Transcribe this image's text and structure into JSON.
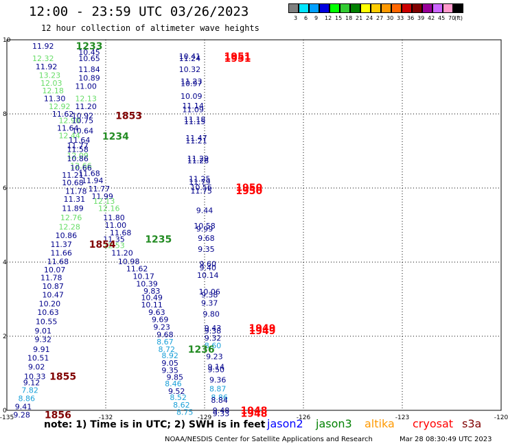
{
  "title": "12:00 - 23:59 UTC 03/26/2023",
  "subtitle": "12 hour collection of altimeter wave heights",
  "color_scale": {
    "labels": [
      "3",
      "6",
      "9",
      "12",
      "15",
      "18",
      "21",
      "24",
      "27",
      "30",
      "33",
      "36",
      "39",
      "42",
      "45",
      "70",
      "(ft)"
    ],
    "colors": [
      "#7f7f7f",
      "#00e5ff",
      "#00a0ff",
      "#0000e0",
      "#00ff00",
      "#33cc33",
      "#008000",
      "#ffff00",
      "#ffcc00",
      "#ff9900",
      "#ff6600",
      "#cc0000",
      "#800000",
      "#990099",
      "#cc66ff",
      "#ff99cc",
      "#000000"
    ]
  },
  "chart_data": {
    "type": "scatter",
    "title": "12:00 - 23:59 UTC 03/26/2023",
    "subtitle": "12 hour collection of altimeter wave heights",
    "xlim": [
      -135,
      -120
    ],
    "ylim": [
      0,
      10
    ],
    "x_ticks": [
      -135,
      -132,
      -129,
      -126,
      -123,
      -120
    ],
    "y_ticks": [
      0,
      2,
      4,
      6,
      8,
      10
    ],
    "x_tick_labels": [
      "-135",
      "-132",
      "-129",
      "-126",
      "-123",
      "-120"
    ],
    "y_tick_labels": [
      "0",
      "2",
      "4",
      "6",
      "8",
      "10"
    ],
    "grid": true,
    "units": "ft",
    "value_colors": {
      "dark_blue": "#00008b",
      "light_green": "#66dd66",
      "cyan": "#1aa0d8"
    },
    "time_colors": {
      "green": "#228b22",
      "dark_red": "#800000",
      "red": "#ff0000"
    },
    "points": [
      {
        "lon": -133.9,
        "lat": 9.83,
        "v": "11.92",
        "c": "dark_blue"
      },
      {
        "lon": -132.5,
        "lat": 9.67,
        "v": "10.45",
        "c": "dark_blue"
      },
      {
        "lon": -133.9,
        "lat": 9.5,
        "v": "12.32",
        "c": "light_green"
      },
      {
        "lon": -132.5,
        "lat": 9.5,
        "v": "10.65",
        "c": "dark_blue"
      },
      {
        "lon": -133.8,
        "lat": 9.28,
        "v": "11.92",
        "c": "dark_blue"
      },
      {
        "lon": -132.5,
        "lat": 9.2,
        "v": "11.84",
        "c": "dark_blue"
      },
      {
        "lon": -133.7,
        "lat": 9.05,
        "v": "13.23",
        "c": "light_green"
      },
      {
        "lon": -132.5,
        "lat": 8.97,
        "v": "10.89",
        "c": "dark_blue"
      },
      {
        "lon": -133.65,
        "lat": 8.83,
        "v": "12.03",
        "c": "light_green"
      },
      {
        "lon": -132.6,
        "lat": 8.75,
        "v": "11.00",
        "c": "dark_blue"
      },
      {
        "lon": -133.6,
        "lat": 8.63,
        "v": "12.18",
        "c": "light_green"
      },
      {
        "lon": -133.55,
        "lat": 8.42,
        "v": "11.30",
        "c": "dark_blue"
      },
      {
        "lon": -132.6,
        "lat": 8.42,
        "v": "12.13",
        "c": "light_green"
      },
      {
        "lon": -133.4,
        "lat": 8.2,
        "v": "12.92",
        "c": "light_green"
      },
      {
        "lon": -132.6,
        "lat": 8.2,
        "v": "11.20",
        "c": "dark_blue"
      },
      {
        "lon": -133.3,
        "lat": 8.0,
        "v": "11.62",
        "c": "dark_blue"
      },
      {
        "lon": -132.7,
        "lat": 7.95,
        "v": "10.92",
        "c": "dark_blue"
      },
      {
        "lon": -133.1,
        "lat": 7.82,
        "v": "12.90",
        "c": "light_green"
      },
      {
        "lon": -132.7,
        "lat": 7.82,
        "v": "10.75",
        "c": "dark_blue"
      },
      {
        "lon": -133.15,
        "lat": 7.62,
        "v": "11.64",
        "c": "dark_blue"
      },
      {
        "lon": -132.7,
        "lat": 7.55,
        "v": "10.64",
        "c": "dark_blue"
      },
      {
        "lon": -133.1,
        "lat": 7.42,
        "v": "12.44",
        "c": "light_green"
      },
      {
        "lon": -132.8,
        "lat": 7.3,
        "v": "11.64",
        "c": "dark_blue"
      },
      {
        "lon": -132.85,
        "lat": 7.15,
        "v": "11.77",
        "c": "dark_blue"
      },
      {
        "lon": -132.85,
        "lat": 7.05,
        "v": "11.58",
        "c": "dark_blue"
      },
      {
        "lon": -132.85,
        "lat": 6.88,
        "v": "12.09",
        "c": "light_green"
      },
      {
        "lon": -132.85,
        "lat": 6.8,
        "v": "10.86",
        "c": "dark_blue"
      },
      {
        "lon": -132.75,
        "lat": 6.6,
        "v": "12.66",
        "c": "light_green"
      },
      {
        "lon": -132.75,
        "lat": 6.55,
        "v": "10.66",
        "c": "dark_blue"
      },
      {
        "lon": -132.5,
        "lat": 6.4,
        "v": "11.68",
        "c": "dark_blue"
      },
      {
        "lon": -133.0,
        "lat": 6.35,
        "v": "11.21",
        "c": "dark_blue"
      },
      {
        "lon": -132.4,
        "lat": 6.2,
        "v": "11.94",
        "c": "dark_blue"
      },
      {
        "lon": -133.0,
        "lat": 6.15,
        "v": "10.68",
        "c": "dark_blue"
      },
      {
        "lon": -132.2,
        "lat": 5.98,
        "v": "11.77",
        "c": "dark_blue"
      },
      {
        "lon": -132.9,
        "lat": 5.92,
        "v": "11.78",
        "c": "dark_blue"
      },
      {
        "lon": -132.1,
        "lat": 5.78,
        "v": "11.99",
        "c": "dark_blue"
      },
      {
        "lon": -132.95,
        "lat": 5.7,
        "v": "11.31",
        "c": "dark_blue"
      },
      {
        "lon": -132.05,
        "lat": 5.65,
        "v": "12.13",
        "c": "light_green"
      },
      {
        "lon": -133.0,
        "lat": 5.45,
        "v": "11.89",
        "c": "dark_blue"
      },
      {
        "lon": -131.9,
        "lat": 5.45,
        "v": "12.16",
        "c": "light_green"
      },
      {
        "lon": -133.05,
        "lat": 5.2,
        "v": "12.76",
        "c": "light_green"
      },
      {
        "lon": -131.75,
        "lat": 5.2,
        "v": "11.80",
        "c": "dark_blue"
      },
      {
        "lon": -131.7,
        "lat": 5.0,
        "v": "11.00",
        "c": "dark_blue"
      },
      {
        "lon": -133.1,
        "lat": 4.95,
        "v": "12.28",
        "c": "light_green"
      },
      {
        "lon": -131.55,
        "lat": 4.8,
        "v": "11.68",
        "c": "dark_blue"
      },
      {
        "lon": -133.2,
        "lat": 4.72,
        "v": "10.86",
        "c": "dark_blue"
      },
      {
        "lon": -131.75,
        "lat": 4.62,
        "v": "11.35",
        "c": "dark_blue"
      },
      {
        "lon": -133.35,
        "lat": 4.48,
        "v": "11.37",
        "c": "dark_blue"
      },
      {
        "lon": -131.75,
        "lat": 4.45,
        "v": "12.53",
        "c": "light_green"
      },
      {
        "lon": -133.35,
        "lat": 4.25,
        "v": "11.66",
        "c": "dark_blue"
      },
      {
        "lon": -131.5,
        "lat": 4.25,
        "v": "11.20",
        "c": "dark_blue"
      },
      {
        "lon": -133.45,
        "lat": 4.02,
        "v": "11.68",
        "c": "dark_blue"
      },
      {
        "lon": -131.3,
        "lat": 4.02,
        "v": "10.98",
        "c": "dark_blue"
      },
      {
        "lon": -133.55,
        "lat": 3.8,
        "v": "10.07",
        "c": "dark_blue"
      },
      {
        "lon": -131.05,
        "lat": 3.82,
        "v": "11.62",
        "c": "dark_blue"
      },
      {
        "lon": -130.85,
        "lat": 3.62,
        "v": "10.17",
        "c": "dark_blue"
      },
      {
        "lon": -133.65,
        "lat": 3.58,
        "v": "11.78",
        "c": "dark_blue"
      },
      {
        "lon": -130.75,
        "lat": 3.42,
        "v": "10.39",
        "c": "dark_blue"
      },
      {
        "lon": -133.6,
        "lat": 3.35,
        "v": "10.87",
        "c": "dark_blue"
      },
      {
        "lon": -130.6,
        "lat": 3.22,
        "v": "9.83",
        "c": "dark_blue"
      },
      {
        "lon": -133.6,
        "lat": 3.12,
        "v": "10.47",
        "c": "dark_blue"
      },
      {
        "lon": -130.6,
        "lat": 3.05,
        "v": "10.49",
        "c": "dark_blue"
      },
      {
        "lon": -133.7,
        "lat": 2.88,
        "v": "10.20",
        "c": "dark_blue"
      },
      {
        "lon": -130.6,
        "lat": 2.85,
        "v": "10.11",
        "c": "dark_blue"
      },
      {
        "lon": -130.45,
        "lat": 2.65,
        "v": "9.63",
        "c": "dark_blue"
      },
      {
        "lon": -133.75,
        "lat": 2.65,
        "v": "10.63",
        "c": "dark_blue"
      },
      {
        "lon": -130.35,
        "lat": 2.45,
        "v": "9.69",
        "c": "dark_blue"
      },
      {
        "lon": -133.8,
        "lat": 2.4,
        "v": "10.55",
        "c": "dark_blue"
      },
      {
        "lon": -130.3,
        "lat": 2.25,
        "v": "9.23",
        "c": "dark_blue"
      },
      {
        "lon": -133.9,
        "lat": 2.15,
        "v": "9.01",
        "c": "dark_blue"
      },
      {
        "lon": -130.2,
        "lat": 2.05,
        "v": "9.68",
        "c": "dark_blue"
      },
      {
        "lon": -133.9,
        "lat": 1.92,
        "v": "9.32",
        "c": "dark_blue"
      },
      {
        "lon": -130.2,
        "lat": 1.85,
        "v": "8.67",
        "c": "cyan"
      },
      {
        "lon": -133.95,
        "lat": 1.65,
        "v": "9.91",
        "c": "dark_blue"
      },
      {
        "lon": -130.15,
        "lat": 1.65,
        "v": "8.72",
        "c": "cyan"
      },
      {
        "lon": -130.05,
        "lat": 1.48,
        "v": "8.92",
        "c": "cyan"
      },
      {
        "lon": -134.05,
        "lat": 1.42,
        "v": "10.51",
        "c": "dark_blue"
      },
      {
        "lon": -130.05,
        "lat": 1.28,
        "v": "9.05",
        "c": "dark_blue"
      },
      {
        "lon": -134.1,
        "lat": 1.18,
        "v": "9.02",
        "c": "dark_blue"
      },
      {
        "lon": -130.05,
        "lat": 1.08,
        "v": "9.35",
        "c": "dark_blue"
      },
      {
        "lon": -134.15,
        "lat": 0.92,
        "v": "10.33",
        "c": "dark_blue"
      },
      {
        "lon": -129.9,
        "lat": 0.9,
        "v": "9.85",
        "c": "dark_blue"
      },
      {
        "lon": -134.25,
        "lat": 0.75,
        "v": "9.12",
        "c": "dark_blue"
      },
      {
        "lon": -129.95,
        "lat": 0.72,
        "v": "8.46",
        "c": "cyan"
      },
      {
        "lon": -134.3,
        "lat": 0.55,
        "v": "7.82",
        "c": "cyan"
      },
      {
        "lon": -129.85,
        "lat": 0.52,
        "v": "9.52",
        "c": "dark_blue"
      },
      {
        "lon": -134.4,
        "lat": 0.32,
        "v": "8.86",
        "c": "cyan"
      },
      {
        "lon": -129.8,
        "lat": 0.35,
        "v": "8.52",
        "c": "cyan"
      },
      {
        "lon": -134.5,
        "lat": 0.1,
        "v": "9.41",
        "c": "dark_blue"
      },
      {
        "lon": -129.7,
        "lat": 0.15,
        "v": "8.62",
        "c": "cyan"
      },
      {
        "lon": -129.6,
        "lat": -0.05,
        "v": "8.75",
        "c": "cyan"
      },
      {
        "lon": -134.55,
        "lat": -0.12,
        "v": "9.28",
        "c": "dark_blue"
      },
      {
        "lon": -129.45,
        "lat": 9.56,
        "v": "10.41",
        "c": "dark_blue"
      },
      {
        "lon": -129.45,
        "lat": 9.5,
        "v": "11.24",
        "c": "dark_blue"
      },
      {
        "lon": -129.45,
        "lat": 9.2,
        "v": "10.32",
        "c": "dark_blue"
      },
      {
        "lon": -129.4,
        "lat": 8.88,
        "v": "11.23",
        "c": "dark_blue"
      },
      {
        "lon": -129.4,
        "lat": 8.82,
        "v": "10.97",
        "c": "dark_blue"
      },
      {
        "lon": -129.4,
        "lat": 8.48,
        "v": "10.09",
        "c": "dark_blue"
      },
      {
        "lon": -129.35,
        "lat": 8.22,
        "v": "11.14",
        "c": "dark_blue"
      },
      {
        "lon": -129.35,
        "lat": 8.12,
        "v": "11.09",
        "c": "dark_blue"
      },
      {
        "lon": -129.3,
        "lat": 7.85,
        "v": "11.18",
        "c": "dark_blue"
      },
      {
        "lon": -129.3,
        "lat": 7.8,
        "v": "11.15",
        "c": "dark_blue"
      },
      {
        "lon": -129.25,
        "lat": 7.35,
        "v": "11.47",
        "c": "dark_blue"
      },
      {
        "lon": -129.25,
        "lat": 7.28,
        "v": "11.21",
        "c": "dark_blue"
      },
      {
        "lon": -129.2,
        "lat": 6.8,
        "v": "11.29",
        "c": "dark_blue"
      },
      {
        "lon": -129.2,
        "lat": 6.74,
        "v": "11.26",
        "c": "dark_blue"
      },
      {
        "lon": -129.15,
        "lat": 6.25,
        "v": "11.25",
        "c": "dark_blue"
      },
      {
        "lon": -129.15,
        "lat": 6.17,
        "v": "11.79",
        "c": "dark_blue"
      },
      {
        "lon": -129.1,
        "lat": 6.02,
        "v": "10.56",
        "c": "dark_blue"
      },
      {
        "lon": -129.1,
        "lat": 5.93,
        "v": "11.75",
        "c": "dark_blue"
      },
      {
        "lon": -129.0,
        "lat": 5.4,
        "v": "9.44",
        "c": "dark_blue"
      },
      {
        "lon": -129.0,
        "lat": 4.98,
        "v": "10.58",
        "c": "dark_blue"
      },
      {
        "lon": -129.0,
        "lat": 4.9,
        "v": "9.99",
        "c": "dark_blue"
      },
      {
        "lon": -128.95,
        "lat": 4.65,
        "v": "9.68",
        "c": "dark_blue"
      },
      {
        "lon": -128.95,
        "lat": 4.35,
        "v": "9.35",
        "c": "dark_blue"
      },
      {
        "lon": -128.9,
        "lat": 3.95,
        "v": "9.60",
        "c": "dark_blue"
      },
      {
        "lon": -128.9,
        "lat": 3.85,
        "v": "9.40",
        "c": "dark_blue"
      },
      {
        "lon": -128.9,
        "lat": 3.65,
        "v": "10.14",
        "c": "dark_blue"
      },
      {
        "lon": -128.85,
        "lat": 3.2,
        "v": "10.06",
        "c": "dark_blue"
      },
      {
        "lon": -128.85,
        "lat": 3.12,
        "v": "9.38",
        "c": "dark_blue"
      },
      {
        "lon": -128.85,
        "lat": 2.9,
        "v": "9.37",
        "c": "dark_blue"
      },
      {
        "lon": -128.8,
        "lat": 2.6,
        "v": "9.80",
        "c": "dark_blue"
      },
      {
        "lon": -128.75,
        "lat": 2.22,
        "v": "9.43",
        "c": "dark_blue"
      },
      {
        "lon": -128.75,
        "lat": 2.15,
        "v": "9.38",
        "c": "dark_blue"
      },
      {
        "lon": -128.75,
        "lat": 1.95,
        "v": "9.32",
        "c": "dark_blue"
      },
      {
        "lon": -128.75,
        "lat": 1.75,
        "v": "8.60",
        "c": "cyan"
      },
      {
        "lon": -128.7,
        "lat": 1.45,
        "v": "9.23",
        "c": "dark_blue"
      },
      {
        "lon": -128.65,
        "lat": 1.18,
        "v": "9.14",
        "c": "dark_blue"
      },
      {
        "lon": -128.65,
        "lat": 1.1,
        "v": "9.50",
        "c": "dark_blue"
      },
      {
        "lon": -128.6,
        "lat": 0.82,
        "v": "9.36",
        "c": "dark_blue"
      },
      {
        "lon": -128.6,
        "lat": 0.58,
        "v": "8.87",
        "c": "cyan"
      },
      {
        "lon": -128.55,
        "lat": 0.35,
        "v": "8.86",
        "c": "cyan"
      },
      {
        "lon": -128.55,
        "lat": 0.28,
        "v": "8.84",
        "c": "dark_blue"
      },
      {
        "lon": -128.5,
        "lat": 0.0,
        "v": "9.48",
        "c": "dark_blue"
      },
      {
        "lon": -128.5,
        "lat": -0.08,
        "v": "9.33",
        "c": "dark_blue"
      }
    ],
    "time_labels": [
      {
        "lon": -132.5,
        "lat": 9.83,
        "t": "1233",
        "c": "green"
      },
      {
        "lon": -131.3,
        "lat": 7.95,
        "t": "1853",
        "c": "dark_red"
      },
      {
        "lon": -131.7,
        "lat": 7.4,
        "t": "1234",
        "c": "green"
      },
      {
        "lon": -132.1,
        "lat": 4.48,
        "t": "1854",
        "c": "dark_red"
      },
      {
        "lon": -130.4,
        "lat": 4.62,
        "t": "1235",
        "c": "green"
      },
      {
        "lon": -129.1,
        "lat": 1.65,
        "t": "1236",
        "c": "green"
      },
      {
        "lon": -133.3,
        "lat": 0.92,
        "t": "1855",
        "c": "dark_red"
      },
      {
        "lon": -133.45,
        "lat": -0.12,
        "t": "1856",
        "c": "dark_red"
      },
      {
        "lon": -128.0,
        "lat": 9.56,
        "t": "1951",
        "c": "red"
      },
      {
        "lon": -128.0,
        "lat": 9.5,
        "t": "1951",
        "c": "red"
      },
      {
        "lon": -127.65,
        "lat": 6.02,
        "t": "1950",
        "c": "red"
      },
      {
        "lon": -127.65,
        "lat": 5.93,
        "t": "1950",
        "c": "red"
      },
      {
        "lon": -127.25,
        "lat": 2.22,
        "t": "1949",
        "c": "red"
      },
      {
        "lon": -127.25,
        "lat": 2.15,
        "t": "1949",
        "c": "red"
      },
      {
        "lon": -127.5,
        "lat": 0.0,
        "t": "1948",
        "c": "red"
      },
      {
        "lon": -127.5,
        "lat": -0.08,
        "t": "1948",
        "c": "red"
      }
    ]
  },
  "note": "note: 1) Time is in UTC; 2) SWH is in feet",
  "satellites": [
    {
      "name": "jason2",
      "color": "#0000ff"
    },
    {
      "name": "jason3",
      "color": "#008000"
    },
    {
      "name": "altika",
      "color": "#ff9900"
    },
    {
      "name": "cryosat",
      "color": "#ff0000"
    },
    {
      "name": "s3a",
      "color": "#800000"
    }
  ],
  "credit": "NOAA/NESDIS Center for Satellite Applications and Research",
  "credit_time": "Mar 28 08:30:49 UTC 2023"
}
